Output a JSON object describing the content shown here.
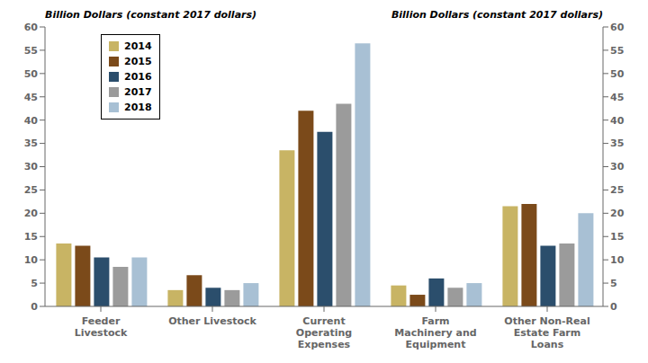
{
  "chart_data": {
    "type": "bar",
    "categories": [
      "Feeder\nLivestock",
      "Other Livestock",
      "Current\nOperating\nExpenses",
      "Farm\nMachinery and\nEquipment",
      "Other Non-Real\nEstate Farm\nLoans"
    ],
    "series": [
      {
        "name": "2014",
        "color": "#C8B464",
        "values": [
          13.5,
          3.5,
          33.5,
          4.5,
          21.5
        ]
      },
      {
        "name": "2015",
        "color": "#7B4A1A",
        "values": [
          13.0,
          6.7,
          42.0,
          2.5,
          22.0
        ]
      },
      {
        "name": "2016",
        "color": "#2B4E6C",
        "values": [
          10.5,
          4.0,
          37.5,
          6.0,
          13.0
        ]
      },
      {
        "name": "2017",
        "color": "#9B9B9B",
        "values": [
          8.5,
          3.5,
          43.5,
          4.0,
          13.5
        ]
      },
      {
        "name": "2018",
        "color": "#A8C0D4",
        "values": [
          10.5,
          5.0,
          56.5,
          5.0,
          20.0
        ]
      }
    ],
    "ylabel": "Billion Dollars (constant 2017 dollars)",
    "y2label": "Billion Dollars (constant 2017 dollars)",
    "ylim": [
      0,
      60
    ],
    "yticks": [
      0,
      5,
      10,
      15,
      20,
      25,
      30,
      35,
      40,
      45,
      50,
      55,
      60
    ],
    "y2lim": [
      0,
      60
    ],
    "y2ticks": [
      0,
      5,
      10,
      15,
      20,
      25,
      30,
      35,
      40,
      45,
      50,
      55,
      60
    ],
    "grid": false,
    "legend": "upper left"
  }
}
